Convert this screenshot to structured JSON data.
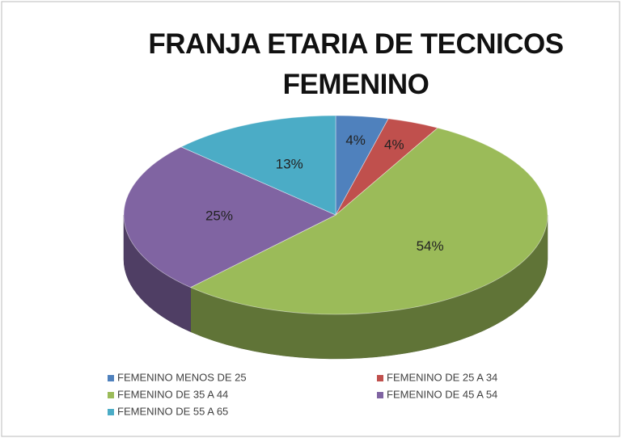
{
  "chart_data": {
    "type": "pie",
    "title": "FRANJA ETARIA DE TECNICOS FEMENINO",
    "categories": [
      "FEMENINO MENOS DE 25",
      "FEMENINO DE 25 A 34",
      "FEMENINO DE 35 A 44",
      "FEMENINO DE 45 A 54",
      "FEMENINO DE 55 A 65"
    ],
    "values": [
      4,
      4,
      54,
      25,
      13
    ],
    "value_labels": [
      "4%",
      "4%",
      "54%",
      "25%",
      "13%"
    ],
    "colors": [
      "#4f81bd",
      "#c0504d",
      "#9bbb59",
      "#8064a2",
      "#4bacc6"
    ],
    "legend": "bottom"
  }
}
